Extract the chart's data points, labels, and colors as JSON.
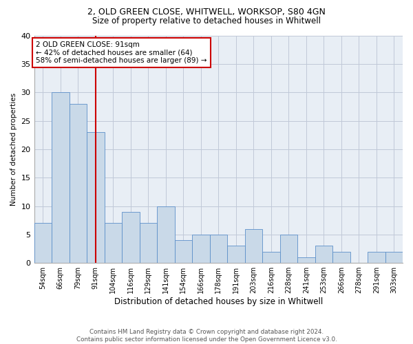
{
  "title1": "2, OLD GREEN CLOSE, WHITWELL, WORKSOP, S80 4GN",
  "title2": "Size of property relative to detached houses in Whitwell",
  "xlabel": "Distribution of detached houses by size in Whitwell",
  "ylabel": "Number of detached properties",
  "categories": [
    "54sqm",
    "66sqm",
    "79sqm",
    "91sqm",
    "104sqm",
    "116sqm",
    "129sqm",
    "141sqm",
    "154sqm",
    "166sqm",
    "178sqm",
    "191sqm",
    "203sqm",
    "216sqm",
    "228sqm",
    "241sqm",
    "253sqm",
    "266sqm",
    "278sqm",
    "291sqm",
    "303sqm"
  ],
  "values": [
    7,
    30,
    28,
    23,
    7,
    9,
    7,
    10,
    4,
    5,
    5,
    3,
    6,
    2,
    5,
    1,
    3,
    2,
    0,
    2,
    2
  ],
  "bar_color": "#c9d9e8",
  "bar_edge_color": "#5b8fc9",
  "highlight_index": 3,
  "highlight_line_color": "#cc0000",
  "annotation_line1": "2 OLD GREEN CLOSE: 91sqm",
  "annotation_line2": "← 42% of detached houses are smaller (64)",
  "annotation_line3": "58% of semi-detached houses are larger (89) →",
  "annotation_box_color": "#cc0000",
  "ylim": [
    0,
    40
  ],
  "yticks": [
    0,
    5,
    10,
    15,
    20,
    25,
    30,
    35,
    40
  ],
  "footer_text": "Contains HM Land Registry data © Crown copyright and database right 2024.\nContains public sector information licensed under the Open Government Licence v3.0.",
  "grid_color": "#c0c8d8",
  "background_color": "#e8eef5"
}
